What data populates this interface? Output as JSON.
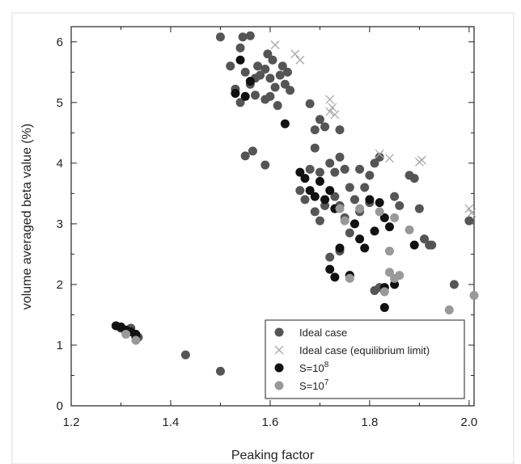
{
  "chart_data": {
    "type": "scatter",
    "xlabel": "Peaking factor",
    "ylabel": "volume averaged beta value (%)",
    "xlim": [
      1.2,
      2.01
    ],
    "ylim": [
      0,
      6.25
    ],
    "xticks": [
      "1.2",
      "1.4",
      "1.6",
      "1.8",
      "2.0"
    ],
    "yticks": [
      "0",
      "1",
      "2",
      "3",
      "4",
      "5",
      "6"
    ],
    "grid": false,
    "legend_position": "bottom-right",
    "series": [
      {
        "name": "Ideal case",
        "marker": "circle",
        "color": "#555555",
        "points": [
          [
            1.3,
            1.28
          ],
          [
            1.31,
            1.22
          ],
          [
            1.32,
            1.28
          ],
          [
            1.33,
            1.13
          ],
          [
            1.335,
            1.13
          ],
          [
            1.43,
            0.84
          ],
          [
            1.5,
            0.57
          ],
          [
            1.5,
            6.08
          ],
          [
            1.52,
            5.6
          ],
          [
            1.54,
            5.9
          ],
          [
            1.545,
            6.08
          ],
          [
            1.56,
            6.1
          ],
          [
            1.53,
            5.22
          ],
          [
            1.54,
            5.0
          ],
          [
            1.55,
            5.5
          ],
          [
            1.56,
            5.3
          ],
          [
            1.57,
            5.4
          ],
          [
            1.575,
            5.6
          ],
          [
            1.58,
            5.45
          ],
          [
            1.59,
            5.55
          ],
          [
            1.6,
            5.4
          ],
          [
            1.61,
            5.25
          ],
          [
            1.62,
            5.45
          ],
          [
            1.625,
            5.6
          ],
          [
            1.63,
            5.3
          ],
          [
            1.635,
            5.5
          ],
          [
            1.64,
            5.2
          ],
          [
            1.595,
            5.8
          ],
          [
            1.605,
            5.7
          ],
          [
            1.57,
            5.12
          ],
          [
            1.59,
            5.05
          ],
          [
            1.615,
            4.95
          ],
          [
            1.55,
            4.12
          ],
          [
            1.565,
            4.2
          ],
          [
            1.59,
            3.97
          ],
          [
            1.6,
            5.1
          ],
          [
            1.68,
            4.98
          ],
          [
            1.7,
            4.72
          ],
          [
            1.69,
            4.55
          ],
          [
            1.71,
            4.6
          ],
          [
            1.74,
            4.55
          ],
          [
            1.68,
            3.9
          ],
          [
            1.69,
            4.25
          ],
          [
            1.7,
            3.85
          ],
          [
            1.72,
            4.0
          ],
          [
            1.73,
            3.85
          ],
          [
            1.75,
            3.9
          ],
          [
            1.76,
            3.6
          ],
          [
            1.74,
            4.1
          ],
          [
            1.78,
            3.9
          ],
          [
            1.79,
            3.6
          ],
          [
            1.8,
            3.8
          ],
          [
            1.81,
            4.0
          ],
          [
            1.82,
            4.1
          ],
          [
            1.8,
            3.35
          ],
          [
            1.77,
            3.4
          ],
          [
            1.66,
            3.55
          ],
          [
            1.67,
            3.4
          ],
          [
            1.69,
            3.2
          ],
          [
            1.7,
            3.05
          ],
          [
            1.71,
            3.3
          ],
          [
            1.73,
            3.45
          ],
          [
            1.74,
            3.3
          ],
          [
            1.75,
            3.1
          ],
          [
            1.78,
            3.2
          ],
          [
            1.76,
            2.85
          ],
          [
            1.72,
            2.45
          ],
          [
            1.74,
            2.55
          ],
          [
            1.76,
            2.15
          ],
          [
            1.81,
            1.9
          ],
          [
            1.82,
            1.95
          ],
          [
            1.85,
            3.45
          ],
          [
            1.86,
            3.3
          ],
          [
            1.88,
            3.8
          ],
          [
            1.89,
            3.75
          ],
          [
            1.9,
            3.25
          ],
          [
            1.91,
            2.75
          ],
          [
            1.92,
            2.65
          ],
          [
            1.925,
            2.65
          ],
          [
            1.97,
            2.0
          ],
          [
            2.0,
            3.05
          ]
        ]
      },
      {
        "name": "Ideal case (equilibrium limit)",
        "marker": "x",
        "color": "#aaaaaa",
        "points": [
          [
            1.61,
            5.95
          ],
          [
            1.65,
            5.8
          ],
          [
            1.66,
            5.7
          ],
          [
            1.72,
            5.05
          ],
          [
            1.725,
            4.92
          ],
          [
            1.73,
            4.8
          ],
          [
            1.72,
            4.85
          ],
          [
            1.82,
            4.15
          ],
          [
            1.84,
            4.08
          ],
          [
            1.9,
            4.02
          ],
          [
            1.905,
            4.05
          ],
          [
            2.0,
            3.25
          ],
          [
            2.005,
            3.18
          ]
        ]
      },
      {
        "name": "S=10^8",
        "marker": "circle",
        "color": "#111111",
        "points": [
          [
            1.29,
            1.32
          ],
          [
            1.3,
            1.3
          ],
          [
            1.31,
            1.25
          ],
          [
            1.32,
            1.22
          ],
          [
            1.33,
            1.18
          ],
          [
            1.33,
            1.14
          ],
          [
            1.54,
            5.7
          ],
          [
            1.56,
            5.35
          ],
          [
            1.55,
            5.1
          ],
          [
            1.53,
            5.15
          ],
          [
            1.63,
            4.65
          ],
          [
            1.66,
            3.85
          ],
          [
            1.67,
            3.75
          ],
          [
            1.68,
            3.55
          ],
          [
            1.69,
            3.45
          ],
          [
            1.7,
            3.7
          ],
          [
            1.71,
            3.4
          ],
          [
            1.72,
            3.55
          ],
          [
            1.73,
            3.25
          ],
          [
            1.74,
            2.6
          ],
          [
            1.72,
            2.25
          ],
          [
            1.73,
            2.12
          ],
          [
            1.76,
            2.15
          ],
          [
            1.77,
            3.0
          ],
          [
            1.78,
            2.75
          ],
          [
            1.79,
            2.6
          ],
          [
            1.8,
            3.4
          ],
          [
            1.81,
            2.88
          ],
          [
            1.82,
            3.35
          ],
          [
            1.83,
            3.1
          ],
          [
            1.84,
            2.95
          ],
          [
            1.83,
            1.95
          ],
          [
            1.85,
            2.0
          ],
          [
            1.83,
            1.62
          ],
          [
            1.89,
            2.65
          ]
        ]
      },
      {
        "name": "S=10^7",
        "marker": "circle",
        "color": "#999999",
        "points": [
          [
            1.31,
            1.18
          ],
          [
            1.33,
            1.08
          ],
          [
            1.74,
            3.25
          ],
          [
            1.75,
            3.05
          ],
          [
            1.78,
            3.25
          ],
          [
            1.82,
            3.2
          ],
          [
            1.84,
            2.55
          ],
          [
            1.84,
            2.2
          ],
          [
            1.85,
            2.1
          ],
          [
            1.86,
            2.15
          ],
          [
            1.85,
            3.1
          ],
          [
            1.88,
            2.9
          ],
          [
            1.96,
            1.58
          ],
          [
            2.01,
            1.82
          ],
          [
            1.83,
            1.88
          ],
          [
            1.76,
            2.1
          ]
        ]
      }
    ]
  },
  "legend": {
    "items": [
      {
        "label": "Ideal case",
        "sup": ""
      },
      {
        "label": "Ideal case (equilibrium limit)",
        "sup": ""
      },
      {
        "label": "S=10",
        "sup": "8"
      },
      {
        "label": "S=10",
        "sup": "7"
      }
    ]
  }
}
